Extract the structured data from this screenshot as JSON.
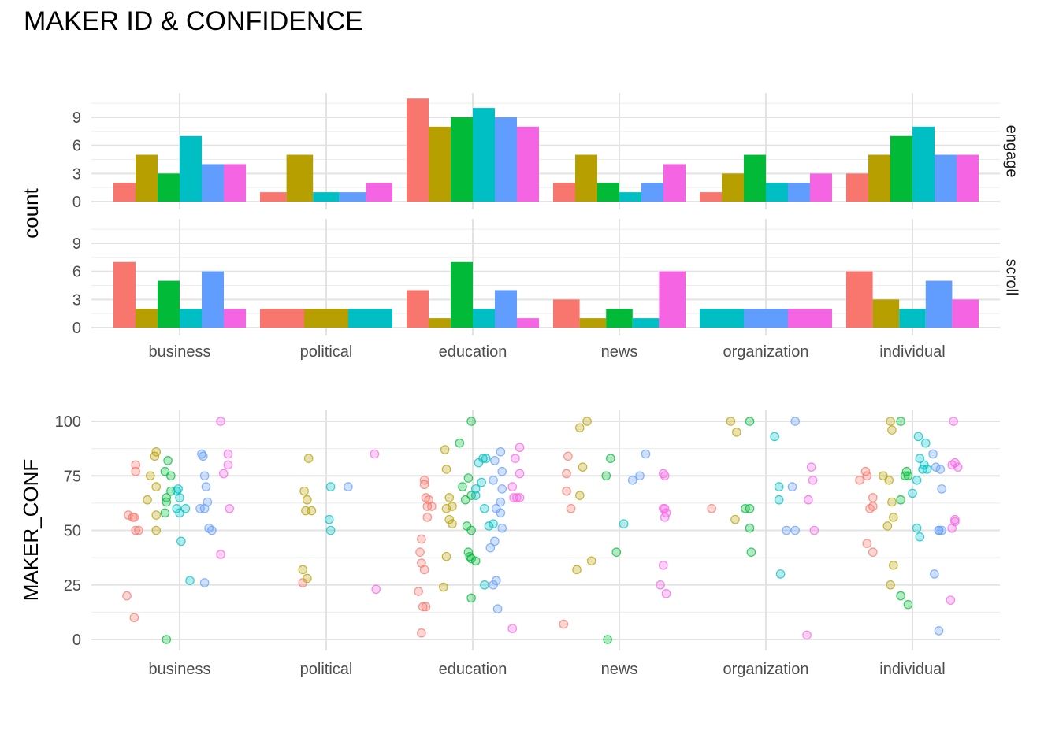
{
  "title": "MAKER ID & CONFIDENCE",
  "categories": [
    "business",
    "political",
    "education",
    "news",
    "organization",
    "individual"
  ],
  "series_colors": [
    "#F8766D",
    "#B79F00",
    "#00BA38",
    "#00BFC4",
    "#619CFF",
    "#F564E3"
  ],
  "chart_data": [
    {
      "type": "bar",
      "title": "MAKER ID & CONFIDENCE",
      "ylabel": "count",
      "xlabel": "",
      "ylim": [
        0,
        11
      ],
      "yticks": [
        0,
        3,
        6,
        9
      ],
      "facets": [
        {
          "label": "engage",
          "bars": [
            [
              2,
              5,
              3,
              7,
              4,
              4
            ],
            [
              1,
              5,
              null,
              1,
              1,
              2
            ],
            [
              11,
              8,
              9,
              10,
              9,
              8
            ],
            [
              2,
              5,
              2,
              1,
              2,
              4
            ],
            [
              1,
              3,
              5,
              2,
              2,
              3
            ],
            [
              3,
              5,
              7,
              8,
              5,
              5
            ]
          ]
        },
        {
          "label": "scroll",
          "bars": [
            [
              7,
              2,
              5,
              2,
              6,
              2
            ],
            [
              2,
              2,
              null,
              2,
              null,
              null
            ],
            [
              4,
              1,
              7,
              2,
              4,
              1
            ],
            [
              3,
              1,
              2,
              1,
              null,
              6
            ],
            [
              null,
              null,
              null,
              2,
              2,
              2
            ],
            [
              6,
              3,
              null,
              2,
              5,
              3
            ]
          ]
        }
      ]
    },
    {
      "type": "scatter",
      "ylabel": "MAKER_CONF",
      "xlabel": "",
      "ylim": [
        0,
        100
      ],
      "yticks": [
        0,
        25,
        50,
        75,
        100
      ],
      "jitter_points": [
        [
          -0.36,
          20,
          0
        ],
        [
          -0.31,
          10,
          0
        ],
        [
          -0.35,
          57,
          0
        ],
        [
          -0.31,
          56,
          0
        ],
        [
          -0.3,
          80,
          0
        ],
        [
          -0.3,
          77,
          0
        ],
        [
          -0.28,
          50,
          0
        ],
        [
          -0.3,
          50,
          0
        ],
        [
          -0.32,
          56,
          0
        ],
        [
          -0.22,
          64,
          1
        ],
        [
          -0.2,
          75,
          1
        ],
        [
          -0.17,
          84,
          1
        ],
        [
          -0.16,
          86,
          1
        ],
        [
          -0.16,
          70,
          1
        ],
        [
          -0.16,
          57,
          1
        ],
        [
          -0.16,
          50,
          1
        ],
        [
          -0.1,
          77,
          2
        ],
        [
          -0.08,
          82,
          2
        ],
        [
          -0.06,
          75,
          2
        ],
        [
          -0.09,
          65,
          2
        ],
        [
          -0.06,
          68,
          2
        ],
        [
          -0.09,
          63,
          2
        ],
        [
          -0.1,
          58,
          2
        ],
        [
          -0.09,
          0,
          2
        ],
        [
          -0.02,
          60,
          3
        ],
        [
          -0.01,
          69,
          3
        ],
        [
          0.0,
          65,
          3
        ],
        [
          0.0,
          58,
          3
        ],
        [
          0.01,
          45,
          3
        ],
        [
          0.07,
          27,
          3
        ],
        [
          0.04,
          60,
          3
        ],
        [
          -0.02,
          68,
          3
        ],
        [
          0.15,
          85,
          4
        ],
        [
          0.16,
          84,
          4
        ],
        [
          0.17,
          75,
          4
        ],
        [
          0.18,
          70,
          4
        ],
        [
          0.19,
          63,
          4
        ],
        [
          0.17,
          60,
          4
        ],
        [
          0.2,
          51,
          4
        ],
        [
          0.22,
          50,
          4
        ],
        [
          0.17,
          26,
          4
        ],
        [
          0.14,
          60,
          4
        ],
        [
          0.28,
          100,
          5
        ],
        [
          0.33,
          85,
          5
        ],
        [
          0.33,
          80,
          5
        ],
        [
          0.3,
          76,
          5
        ],
        [
          0.34,
          60,
          5
        ],
        [
          0.28,
          39,
          5
        ],
        [
          0.84,
          26,
          0
        ],
        [
          0.85,
          68,
          1
        ],
        [
          0.88,
          83,
          1
        ],
        [
          0.87,
          64,
          1
        ],
        [
          0.86,
          59,
          1
        ],
        [
          0.9,
          59,
          1
        ],
        [
          0.84,
          32,
          1
        ],
        [
          0.87,
          28,
          1
        ],
        [
          1.03,
          50,
          3
        ],
        [
          1.03,
          70,
          3
        ],
        [
          1.02,
          55,
          3
        ],
        [
          1.15,
          70,
          4
        ],
        [
          1.33,
          85,
          5
        ],
        [
          1.34,
          23,
          5
        ],
        [
          1.67,
          73,
          0
        ],
        [
          1.67,
          71,
          0
        ],
        [
          1.68,
          65,
          0
        ],
        [
          1.69,
          61,
          0
        ],
        [
          1.7,
          64,
          0
        ],
        [
          1.72,
          61,
          0
        ],
        [
          1.69,
          56,
          0
        ],
        [
          1.65,
          46,
          0
        ],
        [
          1.64,
          40,
          0
        ],
        [
          1.65,
          35,
          0
        ],
        [
          1.67,
          32,
          0
        ],
        [
          1.63,
          22,
          0
        ],
        [
          1.66,
          15,
          0
        ],
        [
          1.68,
          15,
          0
        ],
        [
          1.65,
          3,
          0
        ],
        [
          1.82,
          78,
          1
        ],
        [
          1.84,
          65,
          1
        ],
        [
          1.86,
          61,
          1
        ],
        [
          1.84,
          55,
          1
        ],
        [
          1.86,
          53,
          1
        ],
        [
          1.82,
          38,
          1
        ],
        [
          1.8,
          24,
          1
        ],
        [
          1.81,
          87,
          1
        ],
        [
          1.82,
          60,
          1
        ],
        [
          1.93,
          70,
          2
        ],
        [
          1.97,
          74,
          2
        ],
        [
          1.95,
          64,
          2
        ],
        [
          1.99,
          66,
          2
        ],
        [
          1.96,
          52,
          2
        ],
        [
          1.99,
          50,
          2
        ],
        [
          1.97,
          40,
          2
        ],
        [
          1.98,
          38,
          2
        ],
        [
          1.99,
          37,
          2
        ],
        [
          2.02,
          36,
          2
        ],
        [
          1.99,
          19,
          2
        ],
        [
          1.91,
          90,
          2
        ],
        [
          1.99,
          100,
          2
        ],
        [
          2.04,
          81,
          3
        ],
        [
          2.07,
          83,
          3
        ],
        [
          2.09,
          83,
          3
        ],
        [
          2.02,
          66,
          3
        ],
        [
          2.08,
          60,
          3
        ],
        [
          2.11,
          52,
          3
        ],
        [
          2.02,
          69,
          3
        ],
        [
          2.06,
          72,
          3
        ],
        [
          2.14,
          53,
          3
        ],
        [
          2.08,
          25,
          3
        ],
        [
          2.15,
          82,
          4
        ],
        [
          2.19,
          86,
          4
        ],
        [
          2.2,
          77,
          4
        ],
        [
          2.14,
          73,
          4
        ],
        [
          2.2,
          69,
          4
        ],
        [
          2.19,
          63,
          4
        ],
        [
          2.16,
          60,
          4
        ],
        [
          2.19,
          58,
          4
        ],
        [
          2.2,
          51,
          4
        ],
        [
          2.12,
          42,
          4
        ],
        [
          2.15,
          45,
          4
        ],
        [
          2.16,
          27,
          4
        ],
        [
          2.14,
          25,
          4
        ],
        [
          2.17,
          14,
          4
        ],
        [
          2.32,
          88,
          5
        ],
        [
          2.32,
          76,
          5
        ],
        [
          2.27,
          70,
          5
        ],
        [
          2.28,
          65,
          5
        ],
        [
          2.3,
          65,
          5
        ],
        [
          2.29,
          83,
          5
        ],
        [
          2.32,
          65,
          5
        ],
        [
          2.27,
          5,
          5
        ],
        [
          2.64,
          76,
          0
        ],
        [
          2.64,
          68,
          0
        ],
        [
          2.67,
          60,
          0
        ],
        [
          2.65,
          84,
          0
        ],
        [
          2.62,
          7,
          0
        ],
        [
          2.78,
          100,
          1
        ],
        [
          2.73,
          97,
          1
        ],
        [
          2.75,
          79,
          1
        ],
        [
          2.73,
          66,
          1
        ],
        [
          2.71,
          32,
          1
        ],
        [
          2.81,
          36,
          1
        ],
        [
          2.94,
          83,
          2
        ],
        [
          2.91,
          75,
          2
        ],
        [
          2.98,
          40,
          2
        ],
        [
          2.92,
          0,
          2
        ],
        [
          3.03,
          53,
          3
        ],
        [
          3.09,
          73,
          4
        ],
        [
          3.14,
          75,
          4
        ],
        [
          3.18,
          85,
          4
        ],
        [
          3.3,
          76,
          5
        ],
        [
          3.31,
          75,
          5
        ],
        [
          3.31,
          60,
          5
        ],
        [
          3.32,
          58,
          5
        ],
        [
          3.3,
          60,
          5
        ],
        [
          3.31,
          56,
          5
        ],
        [
          3.3,
          34,
          5
        ],
        [
          3.28,
          25,
          5
        ],
        [
          3.32,
          21,
          5
        ],
        [
          3.63,
          60,
          0
        ],
        [
          3.76,
          100,
          1
        ],
        [
          3.8,
          95,
          1
        ],
        [
          3.79,
          55,
          1
        ],
        [
          3.89,
          100,
          2
        ],
        [
          3.86,
          60,
          2
        ],
        [
          3.89,
          60,
          2
        ],
        [
          3.89,
          51,
          2
        ],
        [
          3.9,
          40,
          2
        ],
        [
          4.06,
          93,
          3
        ],
        [
          4.09,
          70,
          3
        ],
        [
          4.09,
          64,
          3
        ],
        [
          4.1,
          30,
          3
        ],
        [
          4.18,
          70,
          4
        ],
        [
          4.14,
          50,
          4
        ],
        [
          4.2,
          50,
          4
        ],
        [
          4.2,
          100,
          4
        ],
        [
          4.31,
          79,
          5
        ],
        [
          4.32,
          73,
          5
        ],
        [
          4.29,
          64,
          5
        ],
        [
          4.33,
          50,
          5
        ],
        [
          4.28,
          2,
          5
        ],
        [
          4.64,
          73,
          0
        ],
        [
          4.68,
          77,
          0
        ],
        [
          4.69,
          75,
          0
        ],
        [
          4.73,
          65,
          0
        ],
        [
          4.71,
          60,
          0
        ],
        [
          4.73,
          61,
          0
        ],
        [
          4.69,
          44,
          0
        ],
        [
          4.73,
          40,
          0
        ],
        [
          4.85,
          100,
          1
        ],
        [
          4.86,
          96,
          1
        ],
        [
          4.84,
          73,
          1
        ],
        [
          4.86,
          63,
          1
        ],
        [
          4.8,
          75,
          1
        ],
        [
          4.87,
          56,
          1
        ],
        [
          4.83,
          52,
          1
        ],
        [
          4.87,
          34,
          1
        ],
        [
          4.85,
          25,
          1
        ],
        [
          4.92,
          100,
          2
        ],
        [
          4.96,
          77,
          2
        ],
        [
          4.97,
          75,
          2
        ],
        [
          4.95,
          75,
          2
        ],
        [
          4.92,
          64,
          2
        ],
        [
          4.92,
          20,
          2
        ],
        [
          4.97,
          16,
          2
        ],
        [
          5.04,
          93,
          3
        ],
        [
          5.09,
          90,
          3
        ],
        [
          5.05,
          83,
          3
        ],
        [
          5.08,
          80,
          3
        ],
        [
          5.1,
          78,
          3
        ],
        [
          5.07,
          78,
          3
        ],
        [
          5.03,
          73,
          3
        ],
        [
          5.0,
          67,
          3
        ],
        [
          5.03,
          51,
          3
        ],
        [
          5.05,
          47,
          3
        ],
        [
          5.14,
          85,
          4
        ],
        [
          5.16,
          79,
          4
        ],
        [
          5.19,
          78,
          4
        ],
        [
          5.2,
          69,
          4
        ],
        [
          5.18,
          50,
          4
        ],
        [
          5.2,
          50,
          4
        ],
        [
          5.18,
          50,
          4
        ],
        [
          5.18,
          4,
          4
        ],
        [
          5.15,
          30,
          4
        ],
        [
          5.28,
          100,
          5
        ],
        [
          5.27,
          80,
          5
        ],
        [
          5.29,
          81,
          5
        ],
        [
          5.31,
          79,
          5
        ],
        [
          5.29,
          55,
          5
        ],
        [
          5.29,
          54,
          5
        ],
        [
          5.27,
          51,
          5
        ],
        [
          5.26,
          18,
          5
        ]
      ]
    }
  ]
}
